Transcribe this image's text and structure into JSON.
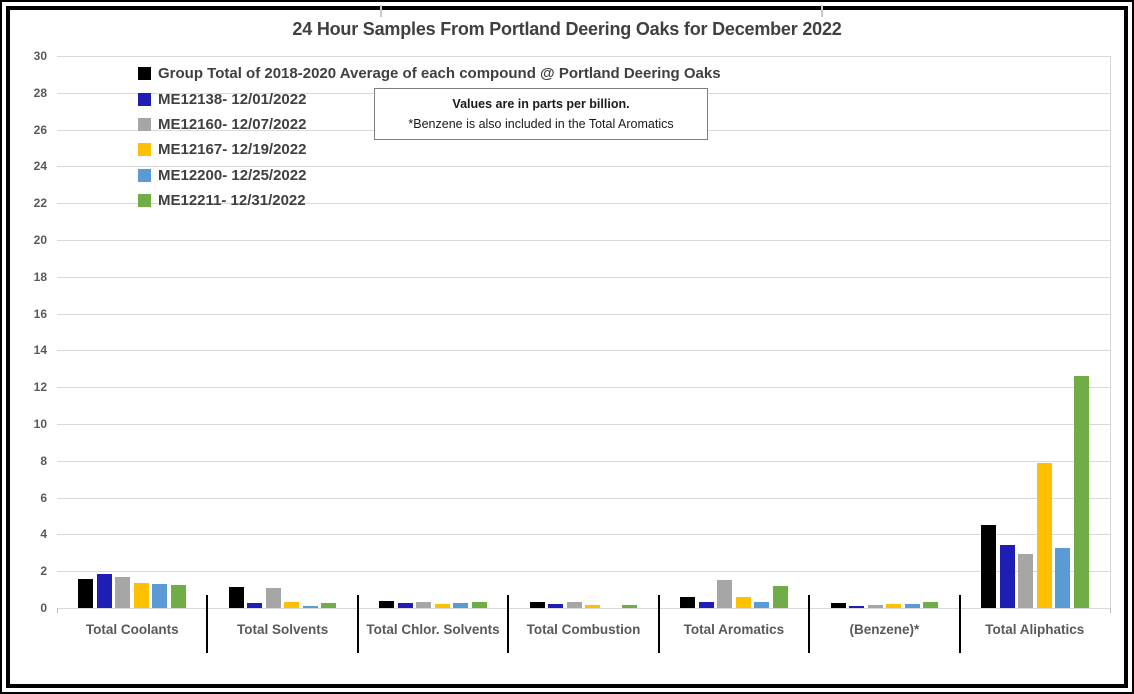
{
  "chart_data": {
    "type": "bar",
    "title": "24 Hour Samples From Portland Deering Oaks for December 2022",
    "value_unit": "parts per billion",
    "categories": [
      "Total Coolants",
      "Total Solvents",
      "Total Chlor. Solvents",
      "Total Combustion",
      "Total Aromatics",
      "(Benzene)*",
      "Total Aliphatics"
    ],
    "series": [
      {
        "name": "Group Total of 2018-2020 Average of each compound @ Portland Deering Oaks",
        "color": "#000000",
        "values": [
          1.55,
          1.15,
          0.4,
          0.35,
          0.6,
          0.25,
          4.5
        ]
      },
      {
        "name": "ME12138- 12/01/2022",
        "color": "#1e1eb4",
        "values": [
          1.85,
          0.25,
          0.25,
          0.2,
          0.35,
          0.12,
          3.45
        ]
      },
      {
        "name": "ME12160- 12/07/2022",
        "color": "#a6a6a6",
        "values": [
          1.7,
          1.1,
          0.35,
          0.3,
          1.5,
          0.18,
          2.95
        ]
      },
      {
        "name": "ME12167- 12/19/2022",
        "color": "#ffc000",
        "values": [
          1.35,
          0.3,
          0.2,
          0.15,
          0.62,
          0.2,
          7.9
        ]
      },
      {
        "name": "ME12200- 12/25/2022",
        "color": "#5b9bd5",
        "values": [
          1.3,
          0.1,
          0.25,
          0.0,
          0.3,
          0.2,
          3.25
        ]
      },
      {
        "name": "ME12211- 12/31/2022",
        "color": "#70ad47",
        "values": [
          1.25,
          0.25,
          0.3,
          0.15,
          1.2,
          0.3,
          12.6
        ]
      }
    ],
    "ylim": [
      0,
      30
    ],
    "ytick_step": 2,
    "yticks": [
      0,
      2,
      4,
      6,
      8,
      10,
      12,
      14,
      16,
      18,
      20,
      22,
      24,
      26,
      28,
      30
    ],
    "grid": true,
    "legend_position": "top-left-inside",
    "annotation": {
      "line1": "Values are in parts per billion.",
      "line2": "*Benzene is also included in the Total Aromatics"
    }
  }
}
